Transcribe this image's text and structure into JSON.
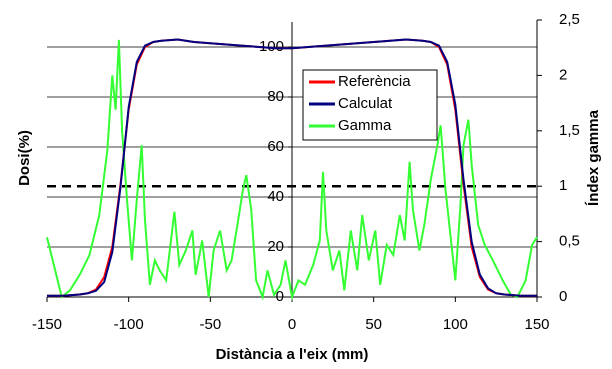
{
  "chart_data": {
    "type": "line",
    "x_label": "Distància a l'eix (mm)",
    "y_label": "Dosi(%)",
    "y2_label": "Índex gamma",
    "xlim": [
      -150,
      150
    ],
    "xticks": [
      -150,
      -100,
      -50,
      0,
      50,
      100,
      150
    ],
    "ylim": [
      0,
      110
    ],
    "yticks": [
      0,
      20,
      40,
      60,
      80,
      100
    ],
    "y2lim": [
      0,
      2.5
    ],
    "y2ticks": [
      0,
      {
        "value": 0.5,
        "label": "0,5"
      },
      1,
      {
        "value": 1.5,
        "label": "1,5"
      },
      2,
      {
        "value": 2.5,
        "label": "2,5"
      }
    ],
    "grid": true,
    "legend": "upper-center",
    "threshold": {
      "axis": "y2",
      "value": 1,
      "style": "dashed",
      "color": "#000000"
    },
    "x": [
      -150,
      -140,
      -130,
      -125,
      -120,
      -115,
      -110,
      -105,
      -100,
      -95,
      -90,
      -85,
      -80,
      -70,
      -60,
      -50,
      -40,
      -30,
      -20,
      -10,
      0,
      10,
      20,
      30,
      40,
      50,
      60,
      70,
      80,
      85,
      90,
      95,
      100,
      105,
      110,
      115,
      120,
      125,
      130,
      140,
      150
    ],
    "series": [
      {
        "name": "Referència",
        "color": "#ff0000",
        "values": [
          0.5,
          0.5,
          1,
          1.5,
          3,
          8,
          20,
          45,
          75,
          93,
          100,
          102,
          102.5,
          103,
          102,
          101.5,
          101,
          100.5,
          100,
          99.5,
          99.5,
          100,
          100.5,
          101,
          101.5,
          102,
          102.5,
          103,
          102.5,
          102,
          100,
          93,
          75,
          45,
          20,
          8,
          3,
          1.5,
          1,
          0.5,
          0.5
        ]
      },
      {
        "name": "Calculat",
        "color": "#000080",
        "values": [
          0.5,
          0.5,
          1,
          1.5,
          2.5,
          6,
          18,
          44,
          76,
          94,
          100.5,
          102,
          102.5,
          103,
          102,
          101.5,
          101,
          100.5,
          100,
          99.5,
          99.5,
          100,
          100.5,
          101,
          101.5,
          102,
          102.5,
          103,
          102.5,
          102,
          100.5,
          94,
          77,
          47,
          22,
          9,
          3.5,
          1.5,
          1,
          0.5,
          0.5
        ]
      },
      {
        "name": "Gamma",
        "color": "#33ff33",
        "axis": "y2",
        "x": [
          -150,
          -145,
          -141,
          -136,
          -130,
          -124,
          -118,
          -113,
          -110,
          -108,
          -106,
          -104,
          -101,
          -98,
          -95,
          -92,
          -90,
          -87,
          -84,
          -81,
          -77,
          -72,
          -69,
          -65,
          -61,
          -59,
          -55,
          -51,
          -48,
          -44,
          -40,
          -37,
          -33,
          -30,
          -28,
          -25,
          -22,
          -18,
          -15,
          -11,
          -7,
          -4,
          0,
          4,
          8,
          13,
          17,
          19,
          21,
          25,
          29,
          32,
          36,
          40,
          43,
          47,
          51,
          54,
          58,
          62,
          66,
          69,
          72,
          74,
          78,
          81,
          85,
          89,
          91,
          94,
          98,
          100,
          103,
          105,
          108,
          110,
          114,
          118,
          123,
          129,
          134,
          138,
          143,
          147,
          150
        ],
        "values": [
          0.54,
          0.24,
          0,
          0.06,
          0.2,
          0.38,
          0.74,
          1.33,
          2.0,
          1.69,
          2.32,
          1.5,
          0.88,
          0.33,
          0.88,
          1.37,
          0.69,
          0.11,
          0.33,
          0.24,
          0.15,
          0.77,
          0.29,
          0.42,
          0.6,
          0.2,
          0.51,
          0,
          0.42,
          0.6,
          0.24,
          0.33,
          0.69,
          0.97,
          1.1,
          0.79,
          0.15,
          0,
          0.24,
          0.02,
          0.11,
          0.33,
          0,
          0.15,
          0.11,
          0.29,
          0.51,
          1.13,
          0.6,
          0.24,
          0.42,
          0.06,
          0.6,
          0.24,
          0.74,
          0.33,
          0.6,
          0.11,
          0.47,
          0.38,
          0.74,
          0.51,
          1.22,
          0.79,
          0.42,
          0.65,
          1.06,
          1.37,
          1.55,
          0.97,
          0.42,
          0.15,
          0.79,
          1.37,
          1.6,
          1.19,
          0.65,
          0.47,
          0.33,
          0.15,
          0.02,
          0,
          0.15,
          0.47,
          0.54
        ]
      }
    ]
  }
}
